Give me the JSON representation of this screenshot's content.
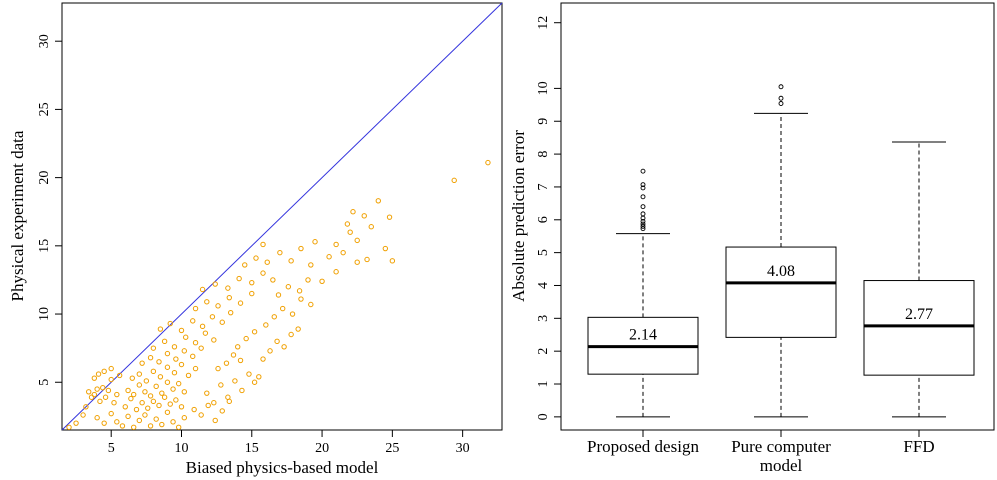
{
  "chart_data": [
    {
      "type": "scatter",
      "xlabel": "Biased physics-based model",
      "ylabel": "Physical experiment data",
      "xlim": [
        1.5,
        32.8
      ],
      "ylim": [
        1.5,
        32.8
      ],
      "x_ticks": [
        5,
        10,
        15,
        20,
        25,
        30
      ],
      "y_ticks": [
        5,
        10,
        15,
        20,
        25,
        30
      ],
      "x_tick_labels": [
        "5",
        "10",
        "15",
        "20",
        "25",
        "30"
      ],
      "y_tick_labels": [
        "5",
        "10",
        "15",
        "20",
        "25",
        "30"
      ],
      "reference_line": {
        "type": "identity",
        "color": "#3333dd"
      },
      "point_color": "#f0a000",
      "grid": false,
      "points": [
        [
          2.0,
          1.7
        ],
        [
          2.5,
          2.0
        ],
        [
          3.0,
          2.6
        ],
        [
          3.2,
          3.2
        ],
        [
          3.4,
          4.3
        ],
        [
          3.6,
          3.9
        ],
        [
          3.8,
          4.1
        ],
        [
          4.0,
          4.5
        ],
        [
          4.2,
          3.6
        ],
        [
          4.4,
          4.6
        ],
        [
          4.6,
          3.9
        ],
        [
          4.8,
          4.4
        ],
        [
          5.0,
          5.2
        ],
        [
          5.2,
          3.5
        ],
        [
          5.4,
          4.1
        ],
        [
          3.8,
          5.3
        ],
        [
          4.1,
          5.6
        ],
        [
          4.5,
          5.8
        ],
        [
          5.0,
          6.0
        ],
        [
          5.6,
          5.5
        ],
        [
          4.0,
          2.4
        ],
        [
          4.5,
          2.0
        ],
        [
          5.0,
          2.7
        ],
        [
          5.4,
          2.1
        ],
        [
          5.8,
          1.8
        ],
        [
          6.2,
          2.5
        ],
        [
          6.6,
          1.7
        ],
        [
          7.0,
          2.2
        ],
        [
          7.4,
          2.6
        ],
        [
          7.8,
          1.8
        ],
        [
          8.2,
          2.3
        ],
        [
          8.6,
          1.9
        ],
        [
          9.0,
          2.8
        ],
        [
          9.4,
          2.1
        ],
        [
          9.8,
          1.7
        ],
        [
          10.2,
          2.4
        ],
        [
          6.0,
          3.2
        ],
        [
          6.4,
          3.8
        ],
        [
          6.8,
          3.0
        ],
        [
          7.2,
          3.5
        ],
        [
          7.6,
          3.1
        ],
        [
          8.0,
          3.6
        ],
        [
          8.4,
          3.3
        ],
        [
          8.8,
          3.9
        ],
        [
          9.2,
          3.4
        ],
        [
          9.6,
          3.7
        ],
        [
          10.0,
          3.2
        ],
        [
          6.2,
          4.4
        ],
        [
          6.6,
          4.1
        ],
        [
          7.0,
          4.8
        ],
        [
          7.4,
          4.3
        ],
        [
          7.8,
          4.0
        ],
        [
          8.2,
          4.7
        ],
        [
          8.6,
          4.2
        ],
        [
          9.0,
          5.0
        ],
        [
          9.4,
          4.5
        ],
        [
          9.8,
          4.9
        ],
        [
          10.2,
          4.3
        ],
        [
          6.5,
          5.3
        ],
        [
          7.0,
          5.6
        ],
        [
          7.5,
          5.1
        ],
        [
          8.0,
          5.8
        ],
        [
          8.5,
          5.4
        ],
        [
          9.0,
          6.1
        ],
        [
          9.5,
          5.7
        ],
        [
          10.0,
          6.3
        ],
        [
          10.5,
          5.5
        ],
        [
          11.0,
          6.0
        ],
        [
          7.2,
          6.4
        ],
        [
          7.8,
          6.8
        ],
        [
          8.4,
          6.5
        ],
        [
          9.0,
          7.1
        ],
        [
          9.6,
          6.7
        ],
        [
          10.2,
          7.3
        ],
        [
          10.8,
          6.9
        ],
        [
          11.4,
          7.5
        ],
        [
          8.0,
          7.5
        ],
        [
          8.8,
          8.0
        ],
        [
          9.5,
          7.6
        ],
        [
          10.3,
          8.3
        ],
        [
          11.0,
          7.9
        ],
        [
          11.7,
          8.6
        ],
        [
          12.3,
          8.1
        ],
        [
          8.5,
          8.9
        ],
        [
          9.2,
          9.3
        ],
        [
          10.0,
          8.8
        ],
        [
          10.8,
          9.5
        ],
        [
          11.5,
          9.1
        ],
        [
          12.2,
          9.8
        ],
        [
          12.9,
          9.4
        ],
        [
          13.5,
          10.1
        ],
        [
          11.0,
          10.4
        ],
        [
          11.8,
          10.9
        ],
        [
          12.6,
          10.6
        ],
        [
          13.4,
          11.2
        ],
        [
          14.2,
          10.8
        ],
        [
          15.0,
          11.5
        ],
        [
          11.5,
          11.8
        ],
        [
          12.4,
          12.2
        ],
        [
          13.3,
          11.9
        ],
        [
          14.1,
          12.6
        ],
        [
          15.0,
          12.3
        ],
        [
          15.8,
          13.0
        ],
        [
          16.5,
          12.5
        ],
        [
          14.5,
          13.6
        ],
        [
          15.3,
          14.1
        ],
        [
          16.1,
          13.8
        ],
        [
          17.0,
          14.5
        ],
        [
          17.8,
          13.9
        ],
        [
          15.8,
          15.1
        ],
        [
          18.5,
          14.8
        ],
        [
          19.2,
          13.6
        ],
        [
          11.8,
          4.2
        ],
        [
          12.3,
          3.5
        ],
        [
          12.8,
          4.8
        ],
        [
          13.3,
          3.9
        ],
        [
          13.8,
          5.1
        ],
        [
          14.3,
          4.4
        ],
        [
          14.8,
          5.6
        ],
        [
          10.9,
          3.0
        ],
        [
          11.4,
          2.6
        ],
        [
          11.9,
          3.3
        ],
        [
          12.4,
          2.2
        ],
        [
          12.9,
          2.9
        ],
        [
          13.4,
          3.6
        ],
        [
          15.2,
          5.0
        ],
        [
          15.5,
          5.4
        ],
        [
          15.8,
          6.7
        ],
        [
          16.3,
          7.3
        ],
        [
          16.8,
          8.0
        ],
        [
          17.3,
          7.6
        ],
        [
          17.8,
          8.5
        ],
        [
          18.3,
          8.9
        ],
        [
          16.0,
          9.2
        ],
        [
          16.6,
          9.8
        ],
        [
          17.2,
          10.4
        ],
        [
          17.9,
          10.0
        ],
        [
          18.5,
          11.1
        ],
        [
          19.2,
          10.7
        ],
        [
          16.9,
          11.4
        ],
        [
          17.6,
          12.0
        ],
        [
          18.4,
          11.7
        ],
        [
          19.0,
          12.5
        ],
        [
          14.0,
          7.6
        ],
        [
          14.6,
          8.2
        ],
        [
          15.2,
          8.7
        ],
        [
          13.2,
          6.4
        ],
        [
          13.7,
          7.0
        ],
        [
          14.2,
          6.6
        ],
        [
          12.6,
          6.0
        ],
        [
          20.5,
          14.2
        ],
        [
          21.0,
          15.1
        ],
        [
          21.5,
          14.5
        ],
        [
          22.0,
          16.0
        ],
        [
          22.5,
          15.4
        ],
        [
          23.0,
          17.2
        ],
        [
          23.5,
          16.4
        ],
        [
          24.0,
          18.3
        ],
        [
          24.8,
          17.1
        ],
        [
          22.2,
          17.5
        ],
        [
          21.0,
          13.1
        ],
        [
          22.5,
          13.8
        ],
        [
          23.2,
          14.0
        ],
        [
          24.5,
          14.8
        ],
        [
          25.0,
          13.9
        ],
        [
          20.0,
          12.4
        ],
        [
          19.5,
          15.3
        ],
        [
          21.8,
          16.6
        ],
        [
          29.4,
          19.8
        ],
        [
          31.8,
          21.1
        ]
      ]
    },
    {
      "type": "box",
      "ylabel": "Absolute prediction error",
      "ylim": [
        -0.4,
        12.6
      ],
      "y_ticks": [
        0,
        1,
        2,
        3,
        4,
        5,
        6,
        7,
        8,
        9,
        10,
        12
      ],
      "y_tick_labels": [
        "0",
        "1",
        "2",
        "3",
        "4",
        "5",
        "6",
        "7",
        "8",
        "9",
        "10",
        "12"
      ],
      "categories": [
        "Proposed design",
        "Pure computer\nmodel",
        "FFD"
      ],
      "boxes": [
        {
          "name": "Proposed design",
          "min": 0.0,
          "q1": 1.3,
          "median": 2.14,
          "q3": 3.03,
          "max": 5.58,
          "median_label": "2.14",
          "outliers": [
            5.73,
            5.8,
            5.87,
            5.95,
            6.05,
            6.18,
            6.4,
            6.7,
            6.97,
            7.07,
            7.48
          ]
        },
        {
          "name": "Pure computer model",
          "min": 0.0,
          "q1": 2.42,
          "median": 4.08,
          "q3": 5.17,
          "max": 9.24,
          "median_label": "4.08",
          "outliers": [
            9.54,
            9.7,
            10.05
          ]
        },
        {
          "name": "FFD",
          "min": 0.0,
          "q1": 1.27,
          "median": 2.77,
          "q3": 4.15,
          "max": 8.37,
          "median_label": "2.77",
          "outliers": []
        }
      ]
    }
  ]
}
